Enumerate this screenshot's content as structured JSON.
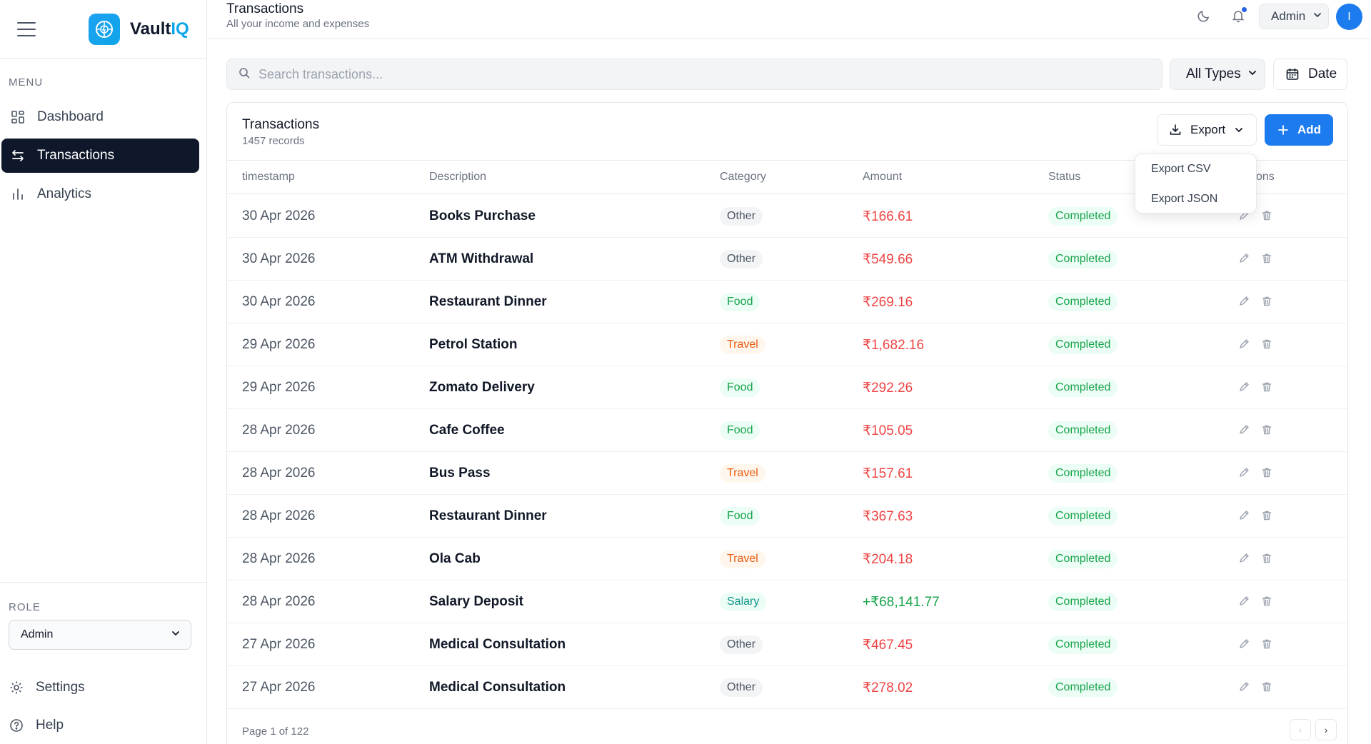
{
  "brand": {
    "name_main": "Vault",
    "name_accent": "IQ"
  },
  "sidebar": {
    "menu_label": "MENU",
    "items": [
      {
        "label": "Dashboard",
        "icon": "grid-icon"
      },
      {
        "label": "Transactions",
        "icon": "arrows-swap-icon",
        "active": true
      },
      {
        "label": "Analytics",
        "icon": "bar-chart-icon"
      }
    ],
    "role_label": "ROLE",
    "role_value": "Admin",
    "settings_label": "Settings",
    "help_label": "Help"
  },
  "header": {
    "title": "Transactions",
    "subtitle": "All your income and expenses",
    "user_label": "Admin",
    "avatar_initial": "I"
  },
  "toolbar": {
    "search_placeholder": "Search transactions...",
    "type_filter": "All Types",
    "date_label": "Date"
  },
  "card": {
    "title": "Transactions",
    "records": "1457 records",
    "export_label": "Export",
    "add_label": "Add"
  },
  "export_menu": {
    "csv": "Export CSV",
    "json": "Export JSON"
  },
  "table": {
    "columns": [
      "timestamp",
      "Description",
      "Category",
      "Amount",
      "Status",
      "ons"
    ],
    "rows": [
      {
        "date": "30 Apr 2026",
        "description": "Books Purchase",
        "category": "Other",
        "amount": "₹166.61",
        "type": "expense",
        "status": "Completed"
      },
      {
        "date": "30 Apr 2026",
        "description": "ATM Withdrawal",
        "category": "Other",
        "amount": "₹549.66",
        "type": "expense",
        "status": "Completed"
      },
      {
        "date": "30 Apr 2026",
        "description": "Restaurant Dinner",
        "category": "Food",
        "amount": "₹269.16",
        "type": "expense",
        "status": "Completed"
      },
      {
        "date": "29 Apr 2026",
        "description": "Petrol Station",
        "category": "Travel",
        "amount": "₹1,682.16",
        "type": "expense",
        "status": "Completed"
      },
      {
        "date": "29 Apr 2026",
        "description": "Zomato Delivery",
        "category": "Food",
        "amount": "₹292.26",
        "type": "expense",
        "status": "Completed"
      },
      {
        "date": "28 Apr 2026",
        "description": "Cafe Coffee",
        "category": "Food",
        "amount": "₹105.05",
        "type": "expense",
        "status": "Completed"
      },
      {
        "date": "28 Apr 2026",
        "description": "Bus Pass",
        "category": "Travel",
        "amount": "₹157.61",
        "type": "expense",
        "status": "Completed"
      },
      {
        "date": "28 Apr 2026",
        "description": "Restaurant Dinner",
        "category": "Food",
        "amount": "₹367.63",
        "type": "expense",
        "status": "Completed"
      },
      {
        "date": "28 Apr 2026",
        "description": "Ola Cab",
        "category": "Travel",
        "amount": "₹204.18",
        "type": "expense",
        "status": "Completed"
      },
      {
        "date": "28 Apr 2026",
        "description": "Salary Deposit",
        "category": "Salary",
        "amount": "+₹68,141.77",
        "type": "income",
        "status": "Completed"
      },
      {
        "date": "27 Apr 2026",
        "description": "Medical Consultation",
        "category": "Other",
        "amount": "₹467.45",
        "type": "expense",
        "status": "Completed"
      },
      {
        "date": "27 Apr 2026",
        "description": "Medical Consultation",
        "category": "Other",
        "amount": "₹278.02",
        "type": "expense",
        "status": "Completed"
      }
    ]
  },
  "pagination": {
    "text": "Page 1 of 122",
    "prev": "‹",
    "next": "›"
  },
  "colors": {
    "accent": "#1d7bf0",
    "sidebar_active": "#0f172a",
    "expense": "#ef4444",
    "income": "#16a34a"
  }
}
